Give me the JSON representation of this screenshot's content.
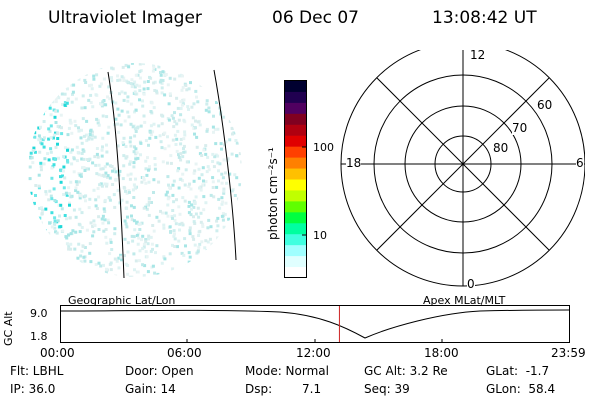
{
  "header": {
    "title": "Ultraviolet Imager",
    "date": "06 Dec 07",
    "time": "13:08:42 UT"
  },
  "colorbar": {
    "units_label": "photon cm⁻²s⁻¹",
    "ticks": [
      "100",
      "10"
    ],
    "colors": [
      "#000030",
      "#200050",
      "#500060",
      "#800020",
      "#b00010",
      "#e00000",
      "#ff4000",
      "#ff8000",
      "#ffc000",
      "#ffff00",
      "#c0ff00",
      "#60ff00",
      "#00ff40",
      "#00ffa0",
      "#40ffe0",
      "#a0ffff",
      "#e0ffff",
      "#ffffff"
    ]
  },
  "polar_plot": {
    "hour_labels": {
      "top": "12",
      "left": "18",
      "right": "6",
      "bottom": "0"
    },
    "lat_labels": [
      "60",
      "70",
      "80"
    ]
  },
  "timeline": {
    "y_axis_label": "GC Alt",
    "y_ticks": [
      "9.0",
      "1.8"
    ],
    "left_label": "Geographic Lat/Lon",
    "right_label": "Apex MLat/MLT",
    "x_ticks": [
      "00:00",
      "06:00",
      "12:00",
      "18:00",
      "23:59"
    ],
    "current_time": "13:08:42",
    "marker_color": "#cc2222"
  },
  "status": {
    "flt": "Flt: LBHL",
    "door": "Door: Open",
    "mode": "Mode: Normal",
    "gc_alt": "GC Alt: 3.2 Re",
    "glat": "GLat:  -1.7",
    "ip": "IP: 36.0",
    "gain": "Gain: 14",
    "dsp_label": "Dsp:",
    "dsp_value": "7.1",
    "seq": "Seq: 39",
    "glon": "GLon:  58.4"
  }
}
